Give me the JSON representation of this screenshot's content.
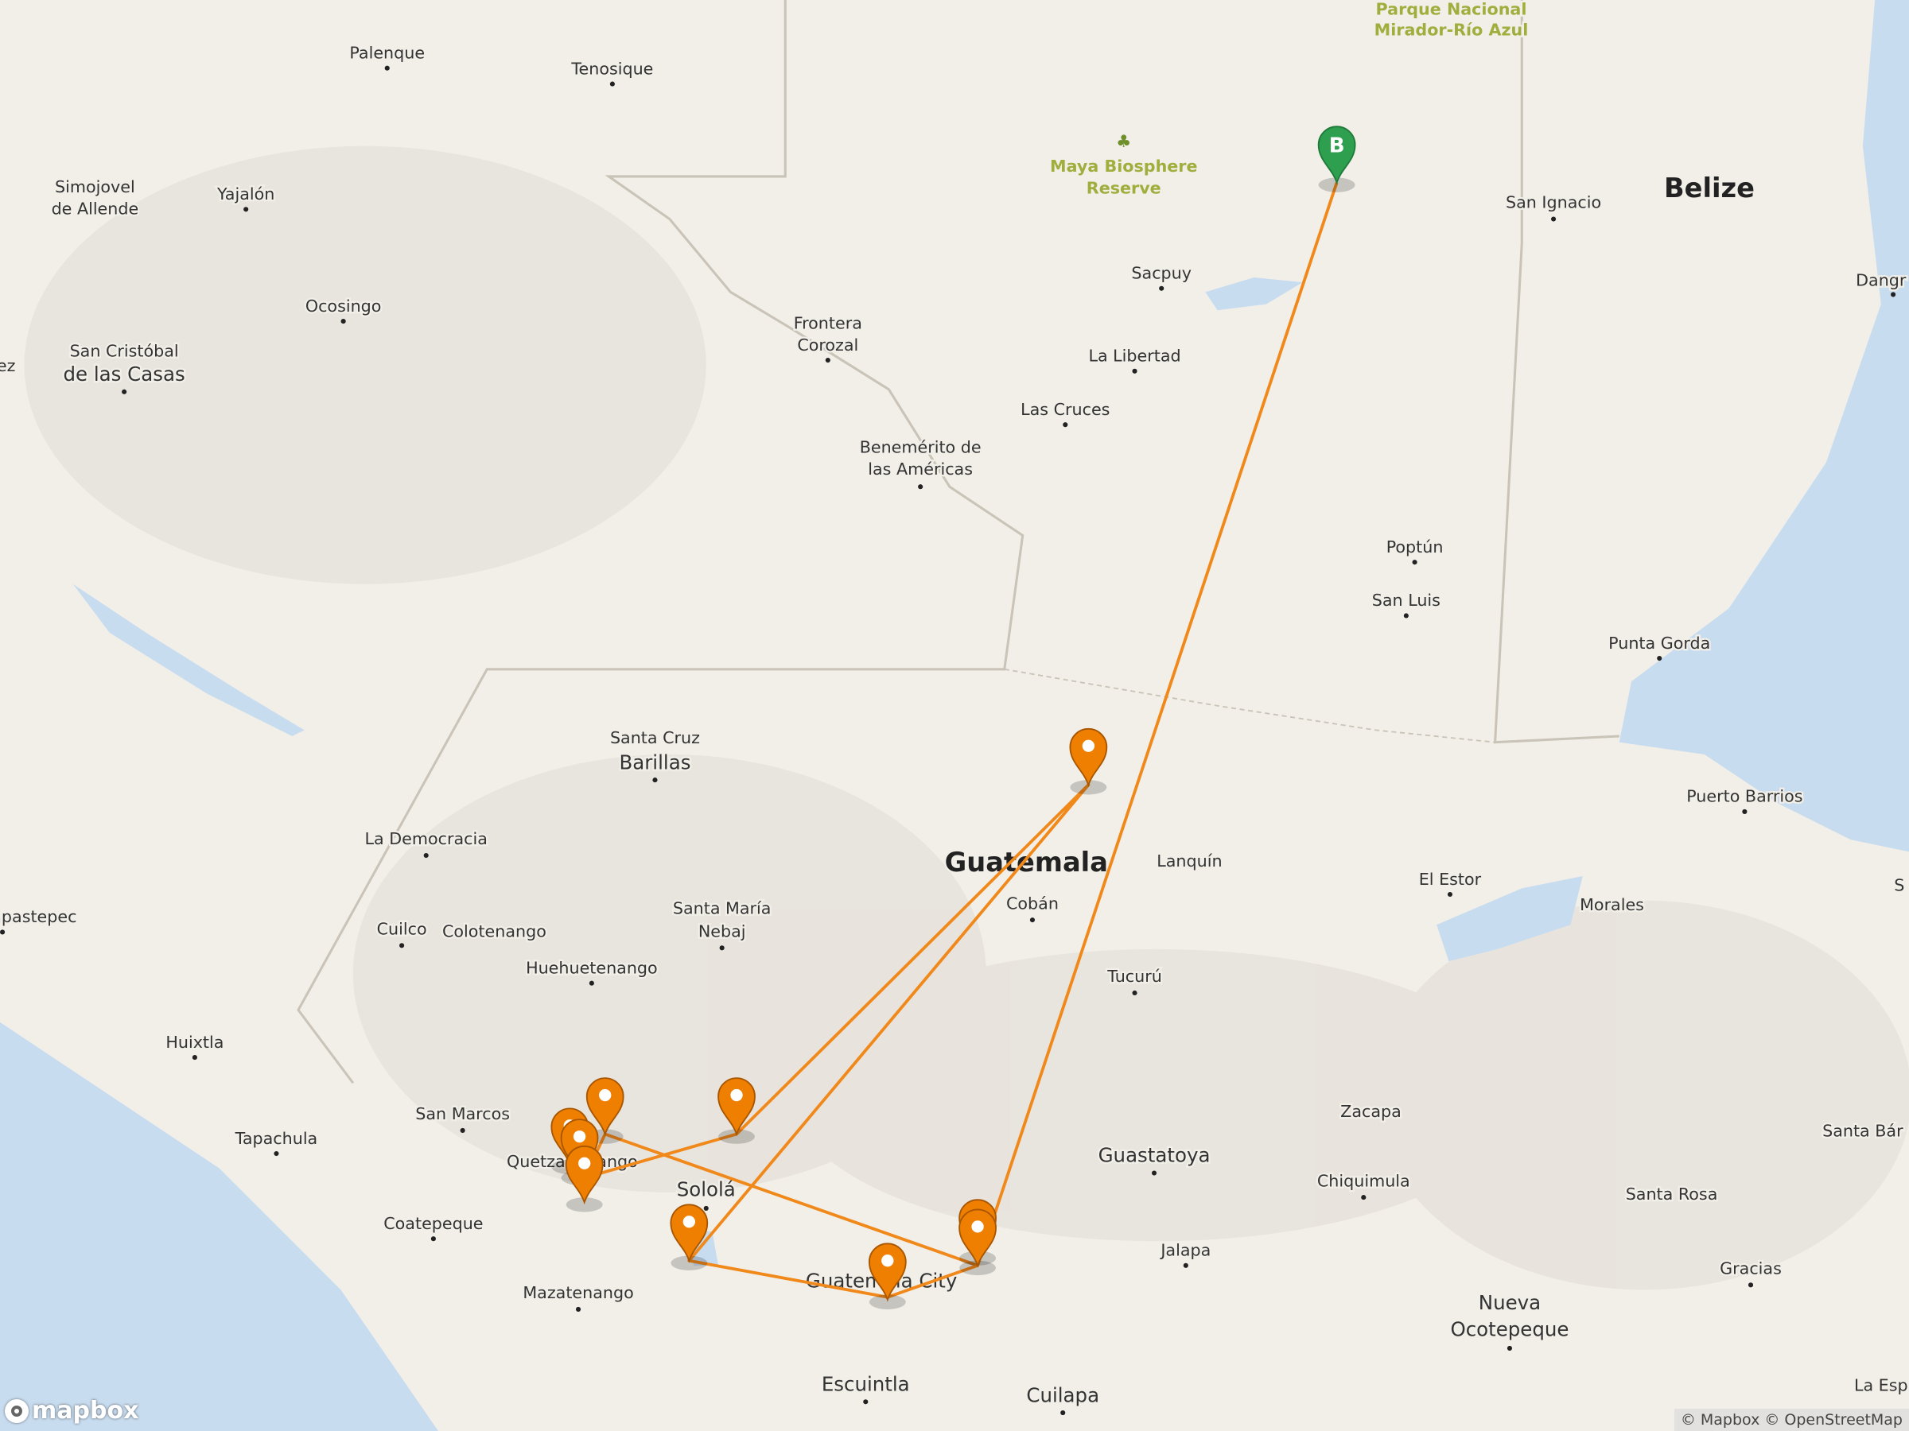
{
  "map": {
    "labels": [
      "Palenque",
      "Tenosique",
      "Simojovel",
      "de Allende",
      "Yajalón",
      "Ocosingo",
      "San Cristóbal",
      "de las Casas",
      "ez",
      "Frontera",
      "Corozal",
      "Benemérito de",
      "las Américas",
      "Sacpuy",
      "La Libertad",
      "Las Cruces",
      "San Ignacio",
      "Belize",
      "Poptún",
      "San Luis",
      "Punta Gorda",
      "Puerto Barrios",
      "Dangr",
      "Santa Cruz",
      "Barillas",
      "La Democracia",
      "Lanquín",
      "Cobán",
      "Santa María",
      "Nebaj",
      "Cuilco",
      "Colotenango",
      "Huehuetenango",
      "apastepec",
      "Huixtla",
      "El Estor",
      "Morales",
      "Tucurú",
      "San Marcos",
      "Tapachula",
      "Quetzaltenango",
      "Sololá",
      "Coatepeque",
      "Mazatenango",
      "Guastatoya",
      "Zacapa",
      "Chiquimula",
      "Santa Bár",
      "Santa Rosa",
      "Jalapa",
      "Gracias",
      "Nueva",
      "Ocotepeque",
      "Guatemala City",
      "Escuintla",
      "Cuilapa",
      "La Esp",
      "S"
    ],
    "countries": [
      "Guatemala",
      "Belize"
    ],
    "parks": [
      "Maya Biosphere",
      "Reserve",
      "Parque Nacional",
      "Mirador-Río Azul"
    ],
    "park_icon": "tree-icon",
    "start_marker_label": "B",
    "colors": {
      "route": "#f0881a",
      "marker": "#ef7f00",
      "start_marker": "#2e9e4f",
      "water": "#c8dcef",
      "land": "#f2efe9"
    }
  },
  "logo": "mapbox",
  "attribution": "© Mapbox © OpenStreetMap"
}
